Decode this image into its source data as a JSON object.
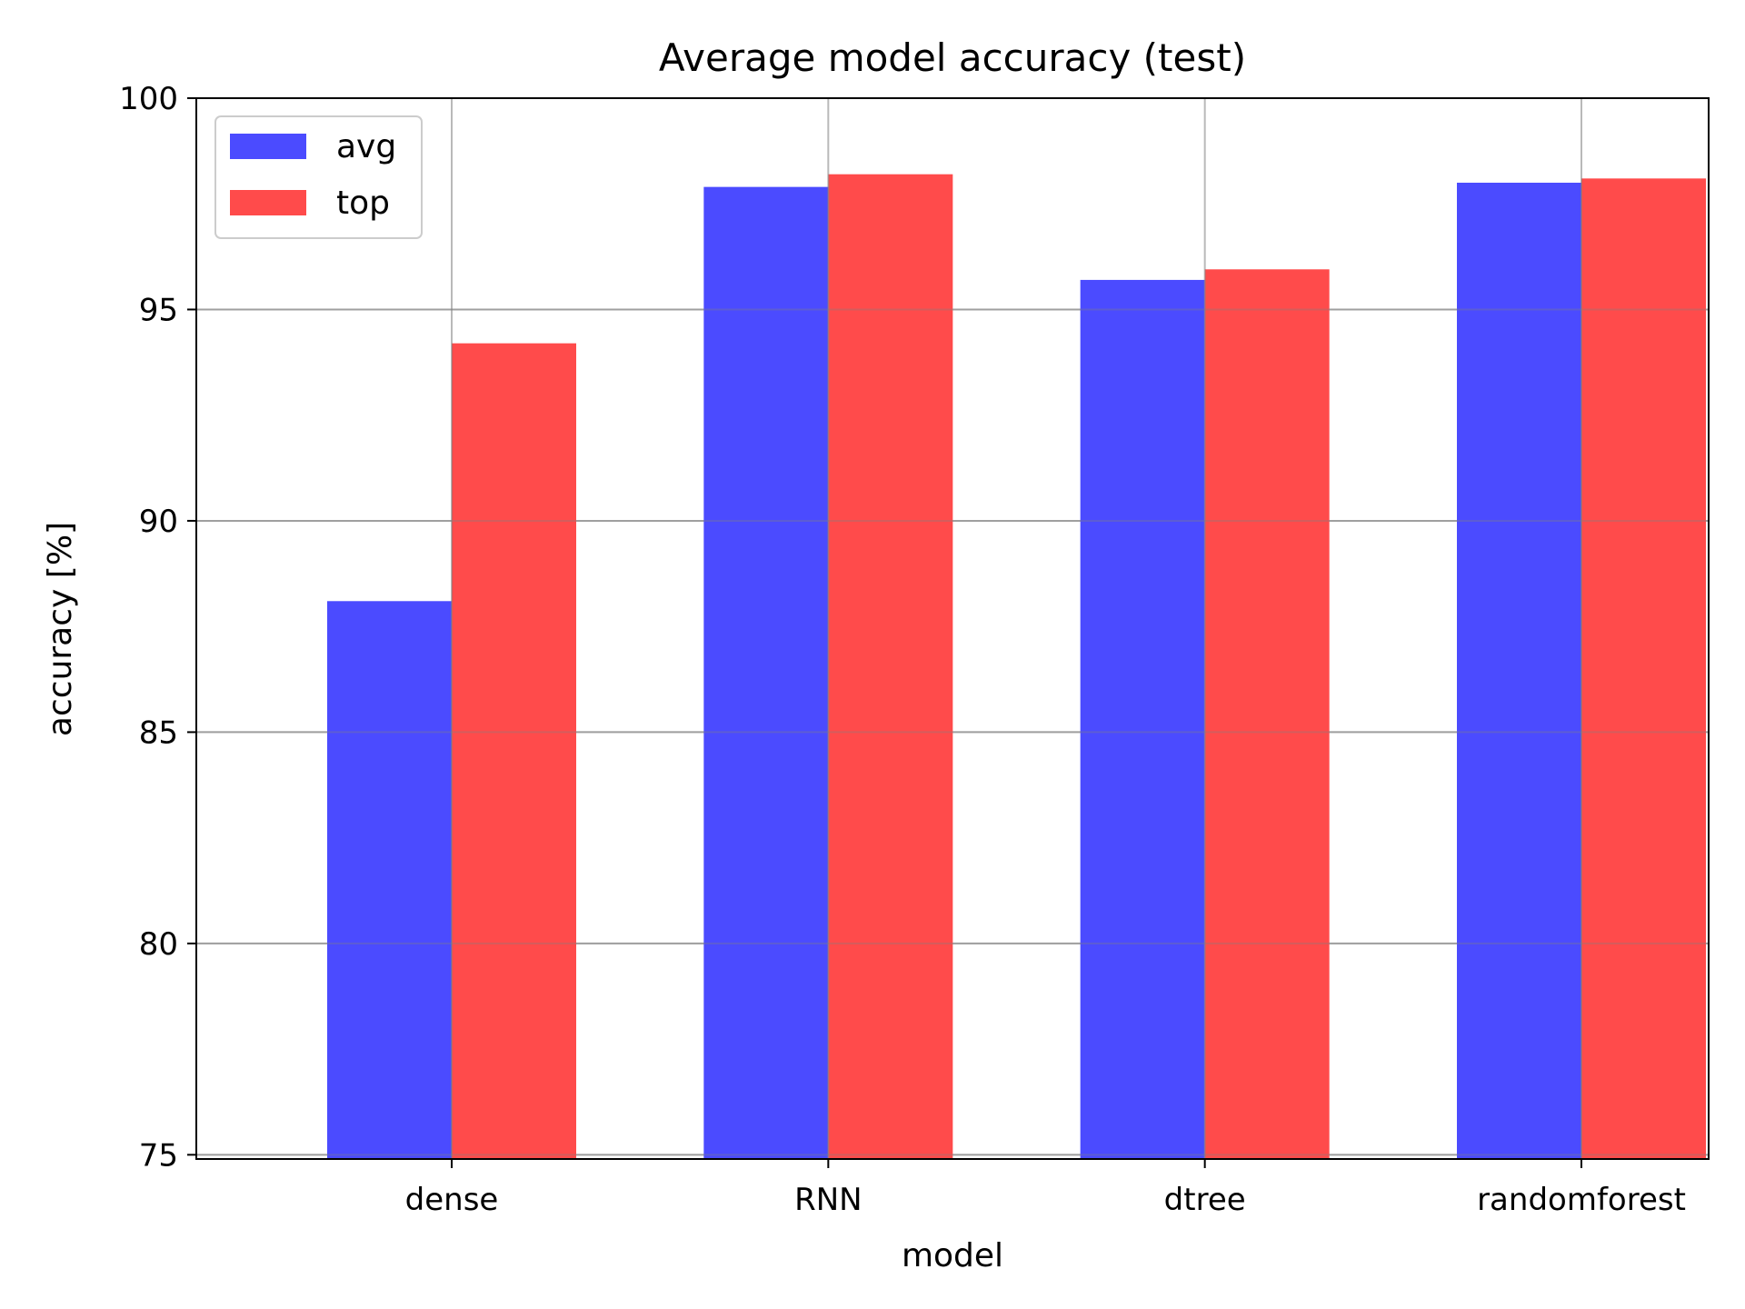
{
  "chart_data": {
    "type": "bar",
    "title": "Average model accuracy (test)",
    "xlabel": "model",
    "ylabel": "accuracy [%]",
    "categories": [
      "dense",
      "RNN",
      "dtree",
      "randomforest"
    ],
    "series": [
      {
        "name": "avg",
        "color": "#4b4bff",
        "values": [
          88.1,
          97.9,
          95.7,
          98.0
        ]
      },
      {
        "name": "top",
        "color": "#ff4b4b",
        "values": [
          94.2,
          98.2,
          95.95,
          98.1
        ]
      }
    ],
    "ylim": [
      74.9,
      100
    ],
    "yticks": [
      75,
      80,
      85,
      90,
      95,
      100
    ],
    "grid": true,
    "legend": "top-left"
  }
}
